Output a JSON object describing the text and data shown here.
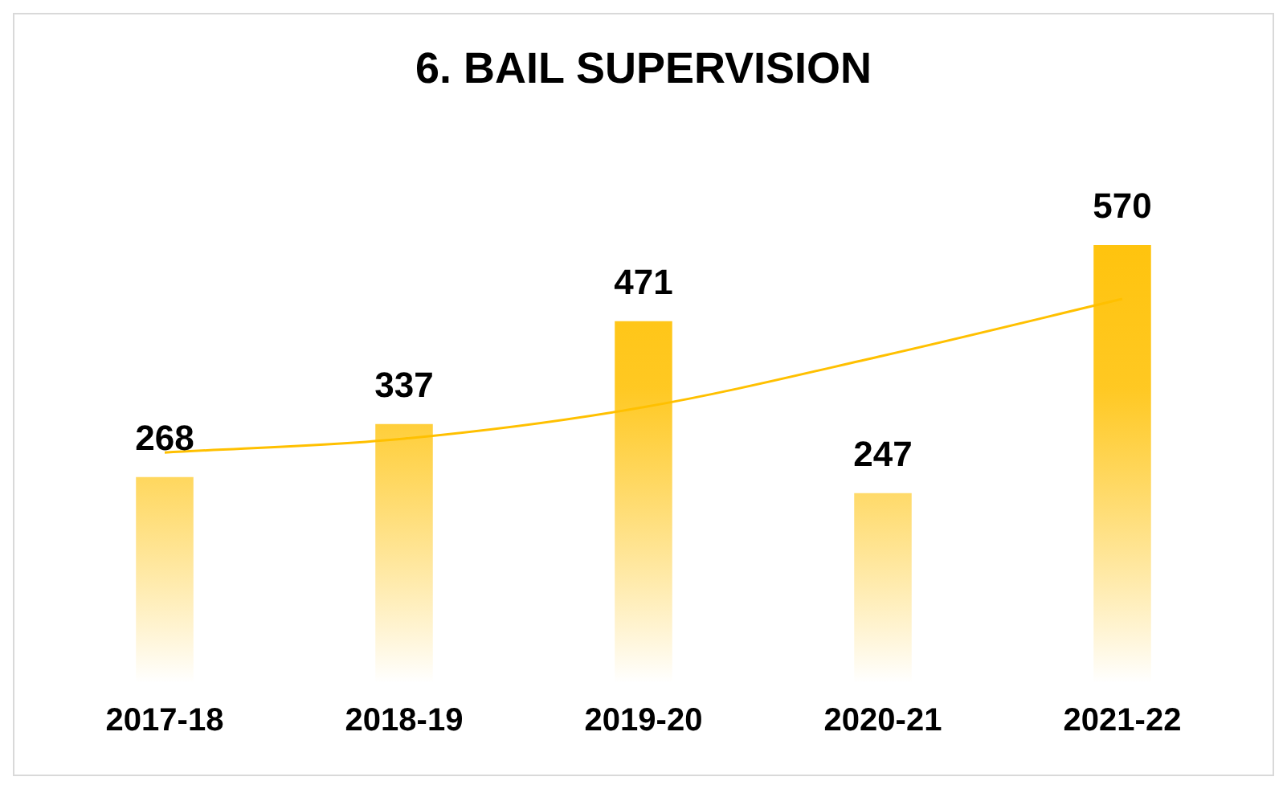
{
  "chart_data": {
    "type": "bar",
    "title": "6. BAIL SUPERVISION",
    "categories": [
      "2017-18",
      "2018-19",
      "2019-20",
      "2020-21",
      "2021-22"
    ],
    "series": [
      {
        "color": "#ffc000",
        "values": [
          268,
          337,
          471,
          247,
          570
        ],
        "value_labels": [
          "268",
          "337",
          "471",
          "247",
          "570"
        ]
      },
      {
        "type": "line",
        "color": "#ffc000",
        "values": [
          300,
          318,
          359,
          426,
          500
        ],
        "marker": "none"
      }
    ],
    "tick_labels": "x",
    "grid": false,
    "legend": false
  }
}
